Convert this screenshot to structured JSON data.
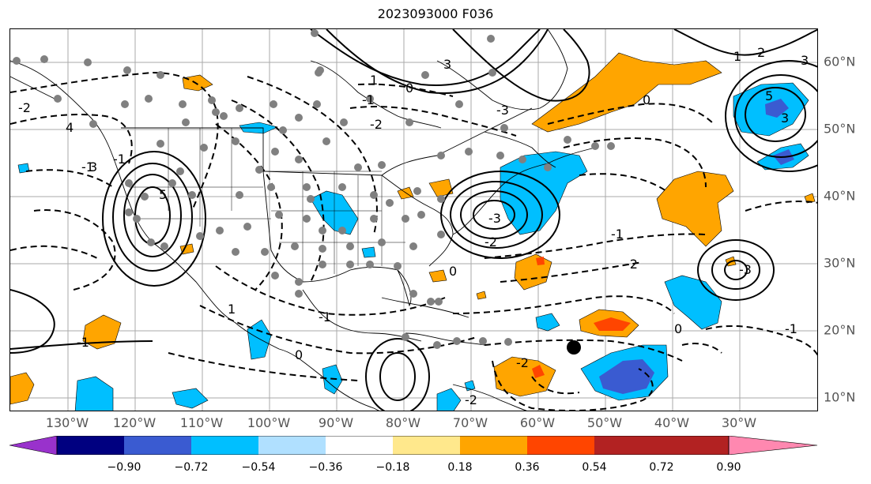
{
  "title": "2023093000 F036",
  "lon_labels": [
    "130°W",
    "120°W",
    "110°W",
    "100°W",
    "90°W",
    "80°W",
    "70°W",
    "60°W",
    "50°W",
    "40°W",
    "30°W"
  ],
  "lat_labels": [
    "60°N",
    "50°N",
    "40°N",
    "30°N",
    "20°N",
    "10°N"
  ],
  "colorbar": {
    "ticks": [
      "−0.90",
      "−0.72",
      "−0.54",
      "−0.36",
      "−0.18",
      "0.18",
      "0.36",
      "0.54",
      "0.72",
      "0.90"
    ],
    "colors": [
      "#9932cc",
      "#000080",
      "#3a5bd1",
      "#00bfff",
      "#b0e0ff",
      "#ffffff",
      "#ffe88c",
      "#ffa500",
      "#ff4500",
      "#b22222",
      "#ff88b0"
    ]
  },
  "contour_labels": [
    "3",
    "0",
    "-1",
    "-2",
    "4",
    "5",
    "-1",
    "-2",
    "3",
    "2",
    "1",
    "3",
    "-3",
    "0",
    "-2",
    "5",
    "3",
    "-3",
    "-3",
    "-1",
    "-2",
    "-1",
    "-1",
    "-2",
    "0",
    "0",
    "-1",
    "1",
    "-1",
    "1",
    "0",
    "-2"
  ],
  "shading_colors": {
    "positive": "#ffa500",
    "strong_positive": "#ff4500",
    "negative": "#00bfff",
    "strong_negative": "#3a5bd1"
  },
  "marker_color": "#808080",
  "special_marker_color": "#000000"
}
